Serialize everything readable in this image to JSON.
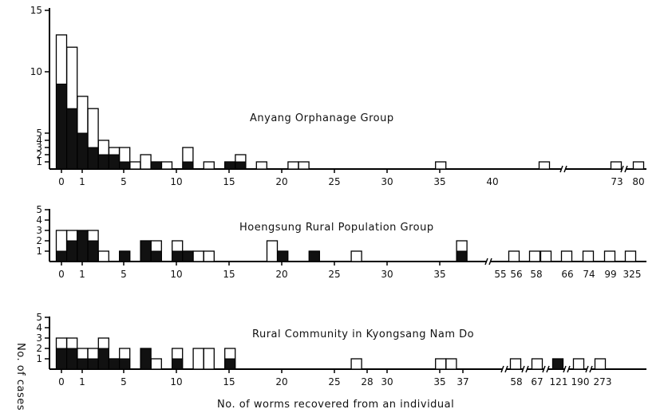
{
  "chart_data": [
    {
      "type": "bar",
      "title": "Anyang Orphanage Group",
      "y_ticks": [
        "1",
        "2",
        "3",
        "4",
        "5",
        "10",
        "15"
      ],
      "x_ticks": [
        "0",
        "1",
        "5",
        "10",
        "15",
        "20",
        "25",
        "30",
        "35",
        "40",
        "73",
        "80"
      ],
      "bars": [
        {
          "x": 0,
          "total": 13,
          "black": 9
        },
        {
          "x": 1,
          "total": 12,
          "black": 7
        },
        {
          "x": 2,
          "total": 8,
          "black": 5
        },
        {
          "x": 3,
          "total": 7,
          "black": 3
        },
        {
          "x": 4,
          "total": 4,
          "black": 2
        },
        {
          "x": 5,
          "total": 3,
          "black": 2
        },
        {
          "x": 6,
          "total": 3,
          "black": 1
        },
        {
          "x": 7,
          "total": 1,
          "black": 0
        },
        {
          "x": 8,
          "total": 2,
          "black": 0
        },
        {
          "x": 9,
          "total": 1,
          "black": 1
        },
        {
          "x": 10,
          "total": 1,
          "black": 0
        },
        {
          "x": 12,
          "total": 3,
          "black": 1
        },
        {
          "x": 14,
          "total": 1,
          "black": 0
        },
        {
          "x": 16,
          "total": 1,
          "black": 1
        },
        {
          "x": 17,
          "total": 2,
          "black": 1
        },
        {
          "x": 19,
          "total": 1,
          "black": 0
        },
        {
          "x": 22,
          "total": 1,
          "black": 0
        },
        {
          "x": 23,
          "total": 1,
          "black": 0
        },
        {
          "x": 36,
          "total": 1,
          "black": 0
        },
        {
          "x": "~50",
          "total": 1,
          "black": 0
        },
        {
          "x": 73,
          "total": 1,
          "black": 0
        },
        {
          "x": 80,
          "total": 1,
          "black": 0
        }
      ]
    },
    {
      "type": "bar",
      "title": "Hoengsung Rural Population Group",
      "y_ticks": [
        "1",
        "2",
        "3",
        "4",
        "5"
      ],
      "x_ticks": [
        "0",
        "1",
        "5",
        "10",
        "15",
        "20",
        "25",
        "30",
        "35",
        "55",
        "56",
        "58",
        "66",
        "74",
        "99",
        "325"
      ],
      "bars": [
        {
          "x": 0,
          "total": 3,
          "black": 1
        },
        {
          "x": 1,
          "total": 3,
          "black": 2
        },
        {
          "x": 2,
          "total": 3,
          "black": 3
        },
        {
          "x": 3,
          "total": 3,
          "black": 2
        },
        {
          "x": 4,
          "total": 1,
          "black": 0
        },
        {
          "x": 6,
          "total": 1,
          "black": 1
        },
        {
          "x": 8,
          "total": 2,
          "black": 2
        },
        {
          "x": 9,
          "total": 2,
          "black": 1
        },
        {
          "x": 11,
          "total": 2,
          "black": 1
        },
        {
          "x": 12,
          "total": 1,
          "black": 1
        },
        {
          "x": 13,
          "total": 1,
          "black": 0
        },
        {
          "x": 14,
          "total": 1,
          "black": 0
        },
        {
          "x": 20,
          "total": 2,
          "black": 0
        },
        {
          "x": 21,
          "total": 1,
          "black": 1
        },
        {
          "x": 24,
          "total": 1,
          "black": 1
        },
        {
          "x": 28,
          "total": 1,
          "black": 0
        },
        {
          "x": 38,
          "total": 2,
          "black": 1
        },
        {
          "x": 56,
          "total": 1,
          "black": 0
        },
        {
          "x": 58,
          "total": 1,
          "black": 0
        },
        {
          "x": "58b",
          "total": 1,
          "black": 0
        },
        {
          "x": 66,
          "total": 1,
          "black": 0
        },
        {
          "x": 74,
          "total": 1,
          "black": 0
        },
        {
          "x": 99,
          "total": 1,
          "black": 0
        },
        {
          "x": 325,
          "total": 1,
          "black": 0
        }
      ]
    },
    {
      "type": "bar",
      "title": "Rural Community in Kyongsang Nam Do",
      "ylabel": "No. of cases",
      "xlabel": "No. of worms recovered from an individual",
      "y_ticks": [
        "1",
        "2",
        "3",
        "4",
        "5"
      ],
      "x_ticks": [
        "0",
        "1",
        "5",
        "10",
        "15",
        "20",
        "25",
        "28",
        "30",
        "35",
        "37",
        "58",
        "67",
        "121",
        "190",
        "273"
      ],
      "bars": [
        {
          "x": 0,
          "total": 3,
          "black": 2
        },
        {
          "x": 1,
          "total": 3,
          "black": 2
        },
        {
          "x": 2,
          "total": 2,
          "black": 1
        },
        {
          "x": 3,
          "total": 2,
          "black": 1
        },
        {
          "x": 4,
          "total": 3,
          "black": 2
        },
        {
          "x": 5,
          "total": 1,
          "black": 1
        },
        {
          "x": 6,
          "total": 2,
          "black": 1
        },
        {
          "x": 8,
          "total": 2,
          "black": 2
        },
        {
          "x": 9,
          "total": 1,
          "black": 0
        },
        {
          "x": 11,
          "total": 2,
          "black": 1
        },
        {
          "x": 13,
          "total": 2,
          "black": 0
        },
        {
          "x": 14,
          "total": 2,
          "black": 0
        },
        {
          "x": 16,
          "total": 2,
          "black": 1
        },
        {
          "x": 28,
          "total": 1,
          "black": 0
        },
        {
          "x": 36,
          "total": 1,
          "black": 0
        },
        {
          "x": 37,
          "total": 1,
          "black": 0
        },
        {
          "x": 58,
          "total": 1,
          "black": 0
        },
        {
          "x": 67,
          "total": 1,
          "black": 0
        },
        {
          "x": 121,
          "total": 1,
          "black": 1
        },
        {
          "x": 190,
          "total": 1,
          "black": 0
        },
        {
          "x": 273,
          "total": 1,
          "black": 0
        }
      ]
    }
  ]
}
